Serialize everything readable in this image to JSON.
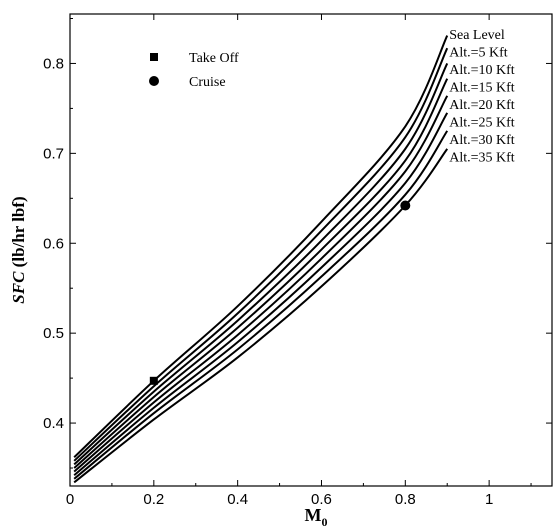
{
  "chart_data": {
    "type": "line",
    "xlabel": "M",
    "xlabel_subscript": "0",
    "ylabel_italic": "SFC",
    "ylabel_rest": " (lb/hr lbf)",
    "xlim": [
      0,
      1.15
    ],
    "ylim": [
      0.33,
      0.855
    ],
    "x_ticks": [
      0,
      0.2,
      0.4,
      0.6,
      0.8,
      1
    ],
    "x_tick_labels": [
      "0",
      "0.2",
      "0.4",
      "0.6",
      "0.8",
      "1"
    ],
    "y_ticks": [
      0.4,
      0.5,
      0.6,
      0.7,
      0.8
    ],
    "y_tick_labels": [
      "0.4",
      "0.5",
      "0.6",
      "0.7",
      "0.8"
    ],
    "grid": false,
    "legend_position": "top-left",
    "series": [
      {
        "name": "Sea Level",
        "x": [
          0.01,
          0.2,
          0.4,
          0.6,
          0.8,
          0.9
        ],
        "y": [
          0.362,
          0.447,
          0.53,
          0.624,
          0.73,
          0.831
        ]
      },
      {
        "name": "Alt.=5 Kft",
        "x": [
          0.01,
          0.2,
          0.4,
          0.6,
          0.8,
          0.9
        ],
        "y": [
          0.358,
          0.441,
          0.522,
          0.614,
          0.718,
          0.817
        ]
      },
      {
        "name": "Alt.=10 Kft",
        "x": [
          0.01,
          0.2,
          0.4,
          0.6,
          0.8,
          0.9
        ],
        "y": [
          0.354,
          0.435,
          0.514,
          0.603,
          0.705,
          0.8
        ]
      },
      {
        "name": "Alt.=15 Kft",
        "x": [
          0.01,
          0.2,
          0.4,
          0.6,
          0.8,
          0.9
        ],
        "y": [
          0.35,
          0.429,
          0.506,
          0.593,
          0.692,
          0.783
        ]
      },
      {
        "name": "Alt.=20 Kft",
        "x": [
          0.01,
          0.2,
          0.4,
          0.6,
          0.8,
          0.9
        ],
        "y": [
          0.346,
          0.423,
          0.498,
          0.583,
          0.68,
          0.764
        ]
      },
      {
        "name": "Alt.=25 Kft",
        "x": [
          0.01,
          0.2,
          0.4,
          0.6,
          0.8,
          0.9
        ],
        "y": [
          0.342,
          0.417,
          0.49,
          0.573,
          0.667,
          0.745
        ]
      },
      {
        "name": "Alt.=30 Kft",
        "x": [
          0.01,
          0.2,
          0.4,
          0.6,
          0.8,
          0.9
        ],
        "y": [
          0.338,
          0.411,
          0.482,
          0.563,
          0.654,
          0.725
        ]
      },
      {
        "name": "Alt.=35 Kft",
        "x": [
          0.01,
          0.2,
          0.4,
          0.6,
          0.8,
          0.9
        ],
        "y": [
          0.334,
          0.404,
          0.473,
          0.552,
          0.642,
          0.705
        ]
      }
    ],
    "markers": [
      {
        "name": "Take Off",
        "shape": "square",
        "x": 0.2,
        "y": 0.447
      },
      {
        "name": "Cruise",
        "shape": "circle",
        "x": 0.8,
        "y": 0.642
      }
    ],
    "line_color": "#000000"
  }
}
